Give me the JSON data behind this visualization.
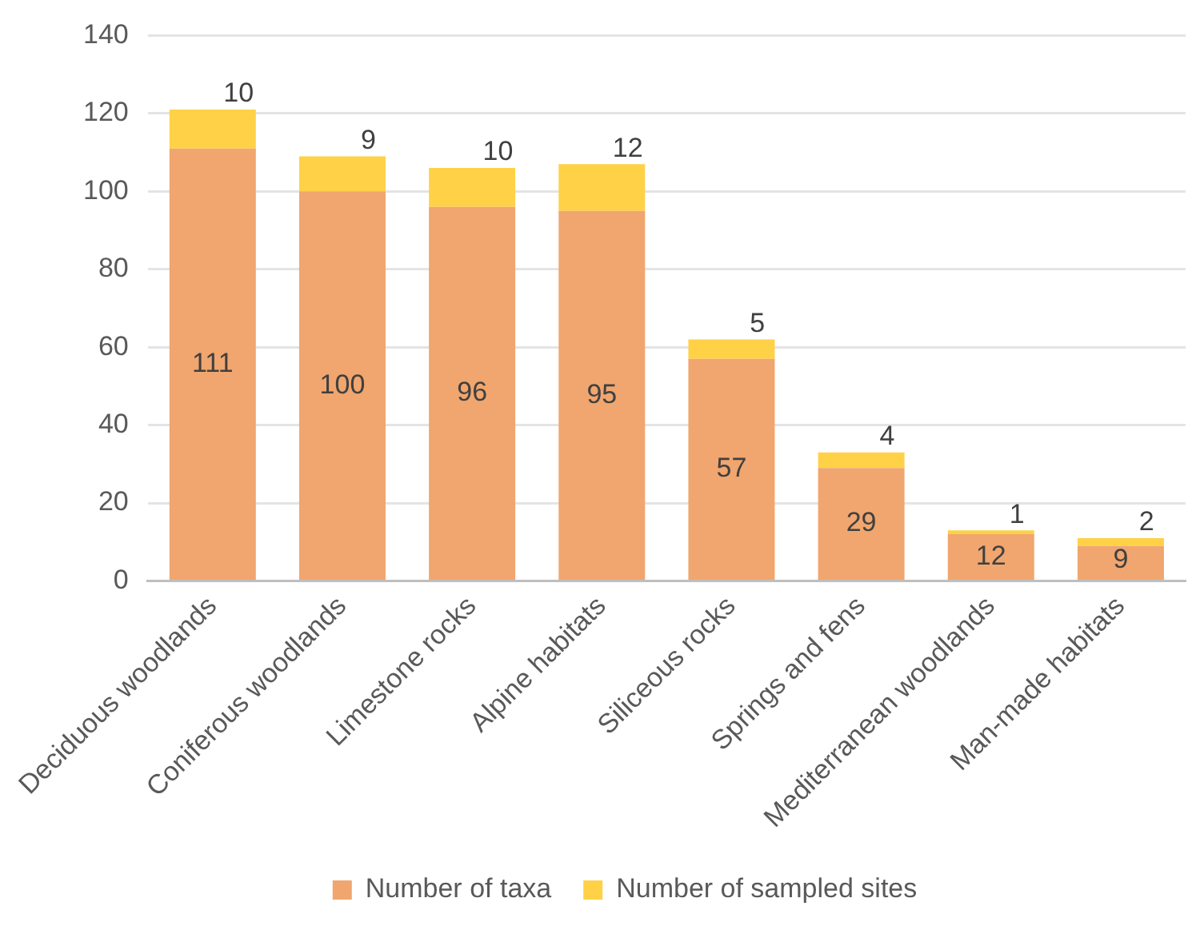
{
  "chart_data": {
    "type": "bar",
    "stacked": true,
    "categories": [
      "Deciduous woodlands",
      "Coniferous woodlands",
      "Limestone rocks",
      "Alpine habitats",
      "Siliceous rocks",
      "Springs and fens",
      "Mediterranean woodlands",
      "Man-made habitats"
    ],
    "series": [
      {
        "name": "Number of taxa",
        "color": "#f0a66e",
        "values": [
          111,
          100,
          96,
          95,
          57,
          29,
          12,
          9
        ]
      },
      {
        "name": "Number of sampled sites",
        "color": "#ffd147",
        "values": [
          10,
          9,
          10,
          12,
          5,
          4,
          1,
          2
        ]
      }
    ],
    "ylim": [
      0,
      140
    ],
    "yticks": [
      0,
      20,
      40,
      60,
      80,
      100,
      120,
      140
    ],
    "grid": "y",
    "legend": "bottom",
    "data_labels": true
  }
}
